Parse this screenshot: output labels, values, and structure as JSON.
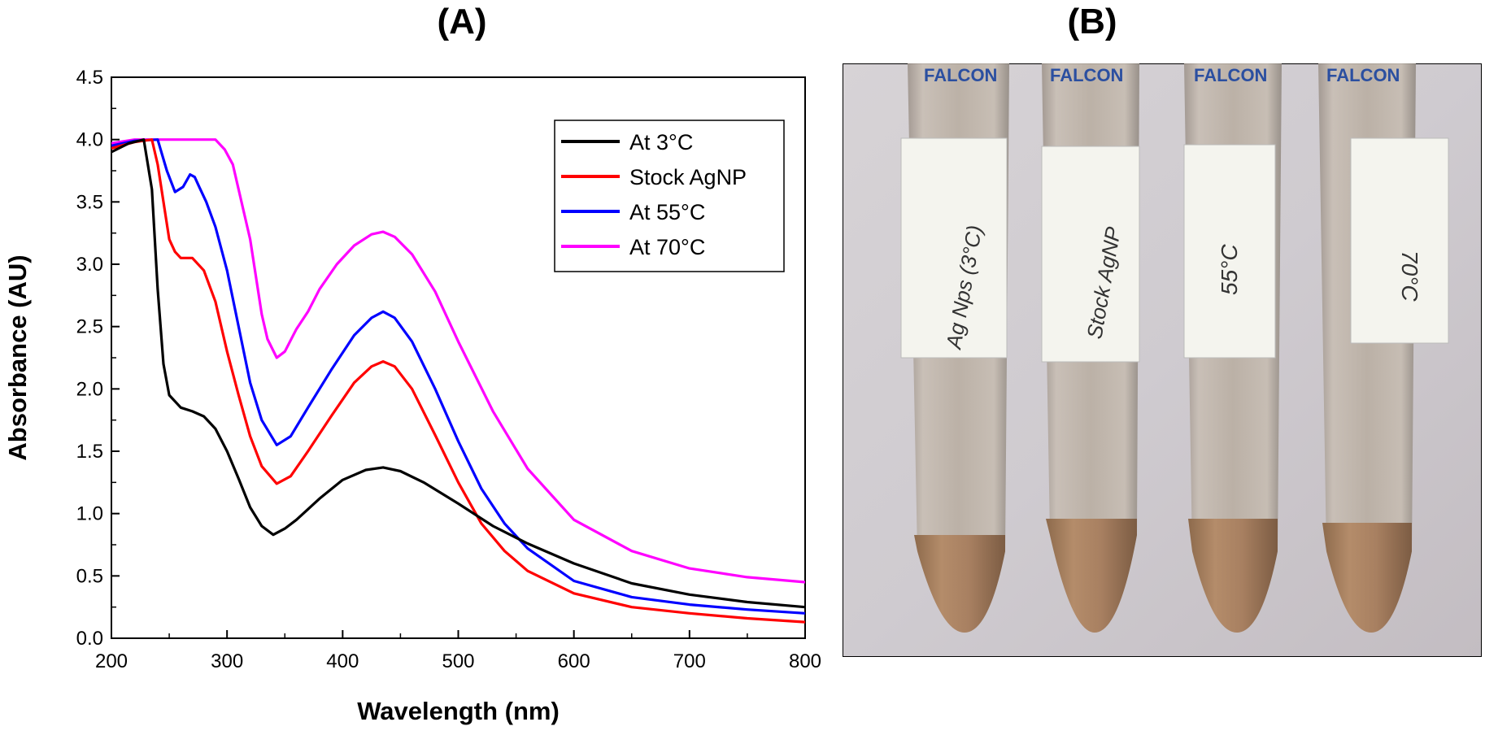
{
  "panels": {
    "a_label": "(A)",
    "b_label": "(B)"
  },
  "chart_data": {
    "type": "line",
    "title": "",
    "xlabel": "Wavelength (nm)",
    "ylabel": "Absorbance (AU)",
    "xlim": [
      200,
      800
    ],
    "ylim": [
      0.0,
      4.5
    ],
    "xticks": [
      "200",
      "300",
      "400",
      "500",
      "600",
      "700",
      "800"
    ],
    "yticks": [
      "0.0",
      "0.5",
      "1.0",
      "1.5",
      "2.0",
      "2.5",
      "3.0",
      "3.5",
      "4.0",
      "4.5"
    ],
    "legend_position": "top-right",
    "series": [
      {
        "name": "At 3°C",
        "color": "#000000",
        "x": [
          200,
          215,
          228,
          235,
          240,
          245,
          250,
          260,
          270,
          280,
          290,
          300,
          310,
          320,
          330,
          340,
          350,
          360,
          380,
          400,
          420,
          435,
          450,
          470,
          500,
          530,
          560,
          600,
          650,
          700,
          750,
          800
        ],
        "y": [
          3.9,
          3.97,
          4.0,
          3.6,
          2.8,
          2.2,
          1.95,
          1.85,
          1.82,
          1.78,
          1.68,
          1.5,
          1.28,
          1.05,
          0.9,
          0.83,
          0.88,
          0.95,
          1.12,
          1.27,
          1.35,
          1.37,
          1.34,
          1.25,
          1.08,
          0.9,
          0.76,
          0.6,
          0.44,
          0.35,
          0.29,
          0.25
        ]
      },
      {
        "name": "Stock AgNP",
        "color": "#ff0000",
        "x": [
          200,
          220,
          235,
          240,
          245,
          250,
          255,
          260,
          270,
          280,
          290,
          300,
          310,
          320,
          330,
          343,
          355,
          370,
          390,
          410,
          425,
          435,
          445,
          460,
          480,
          500,
          520,
          540,
          560,
          600,
          650,
          700,
          750,
          800
        ],
        "y": [
          3.93,
          3.98,
          4.0,
          3.8,
          3.5,
          3.2,
          3.1,
          3.05,
          3.05,
          2.95,
          2.7,
          2.3,
          1.95,
          1.62,
          1.38,
          1.24,
          1.3,
          1.5,
          1.78,
          2.05,
          2.18,
          2.22,
          2.18,
          2.0,
          1.63,
          1.25,
          0.92,
          0.7,
          0.54,
          0.36,
          0.25,
          0.2,
          0.16,
          0.13
        ]
      },
      {
        "name": "At 55°C",
        "color": "#0000ff",
        "x": [
          200,
          220,
          240,
          248,
          255,
          262,
          268,
          272,
          276,
          282,
          290,
          300,
          310,
          320,
          330,
          343,
          355,
          370,
          390,
          410,
          425,
          435,
          445,
          460,
          480,
          500,
          520,
          540,
          560,
          600,
          650,
          700,
          750,
          800
        ],
        "y": [
          3.95,
          3.99,
          4.0,
          3.75,
          3.58,
          3.62,
          3.72,
          3.7,
          3.62,
          3.5,
          3.3,
          2.95,
          2.5,
          2.05,
          1.75,
          1.55,
          1.62,
          1.85,
          2.15,
          2.43,
          2.57,
          2.62,
          2.57,
          2.38,
          2.0,
          1.58,
          1.2,
          0.92,
          0.72,
          0.46,
          0.33,
          0.27,
          0.23,
          0.2
        ]
      },
      {
        "name": "At 70°C",
        "color": "#ff00ff",
        "x": [
          200,
          220,
          250,
          290,
          298,
          305,
          310,
          315,
          320,
          325,
          330,
          335,
          343,
          350,
          360,
          370,
          380,
          395,
          410,
          425,
          435,
          445,
          460,
          480,
          500,
          530,
          560,
          600,
          650,
          700,
          750,
          800
        ],
        "y": [
          3.97,
          4.0,
          4.0,
          4.0,
          3.92,
          3.8,
          3.6,
          3.4,
          3.2,
          2.9,
          2.6,
          2.4,
          2.25,
          2.3,
          2.48,
          2.62,
          2.8,
          3.0,
          3.15,
          3.24,
          3.26,
          3.22,
          3.08,
          2.78,
          2.38,
          1.82,
          1.36,
          0.95,
          0.7,
          0.56,
          0.49,
          0.45
        ]
      }
    ]
  },
  "photo": {
    "tube_brand": "FALCON",
    "tubes": [
      {
        "label": "Ag Nps (3°C)"
      },
      {
        "label": "Stock AgNP"
      },
      {
        "label": "55°C"
      },
      {
        "label": "70°C"
      }
    ]
  }
}
